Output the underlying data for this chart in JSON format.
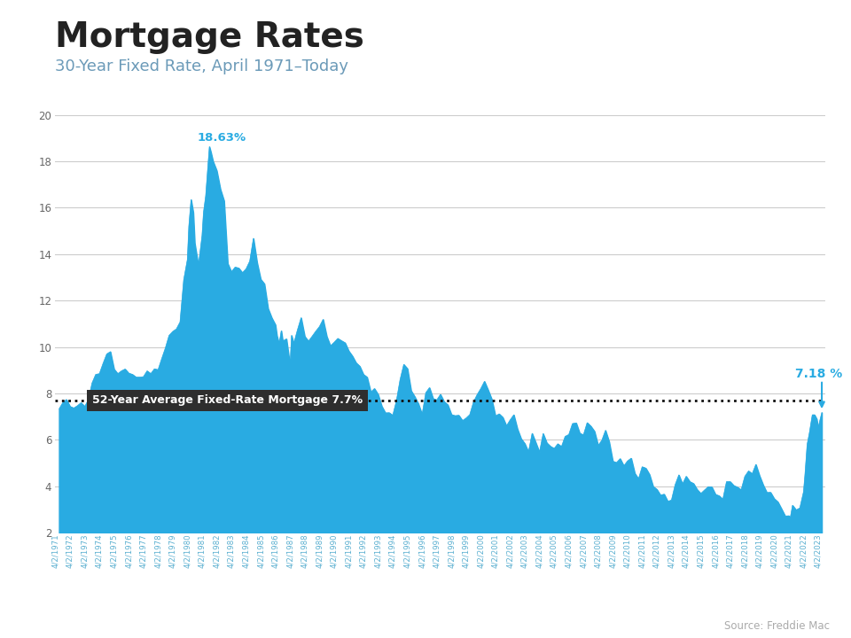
{
  "title": "Mortgage Rates",
  "subtitle": "30-Year Fixed Rate, April 1971–Today",
  "source": "Source: Freddie Mac",
  "avg_rate": 7.7,
  "avg_label": "52-Year Average Fixed-Rate Mortgage 7.7%",
  "current_rate": 7.18,
  "current_label": "7.18 %",
  "peak_rate": 18.63,
  "peak_label": "18.63%",
  "ylim": [
    2,
    20
  ],
  "yticks": [
    2,
    4,
    6,
    8,
    10,
    12,
    14,
    16,
    18,
    20
  ],
  "line_color": "#29ABE2",
  "fill_color": "#29ABE2",
  "avg_line_color": "#111111",
  "peak_text_color": "#29ABE2",
  "current_text_color": "#29ABE2",
  "title_color": "#222222",
  "subtitle_color": "#6b9ab8",
  "header_bar_color": "#29ABE2",
  "background_color": "#ffffff",
  "grid_color": "#cccccc",
  "avg_box_color": "#2e2e2e",
  "avg_box_text_color": "#ffffff",
  "source_color": "#aaaaaa",
  "xtick_color": "#5aafd0",
  "ytick_color": "#666666"
}
